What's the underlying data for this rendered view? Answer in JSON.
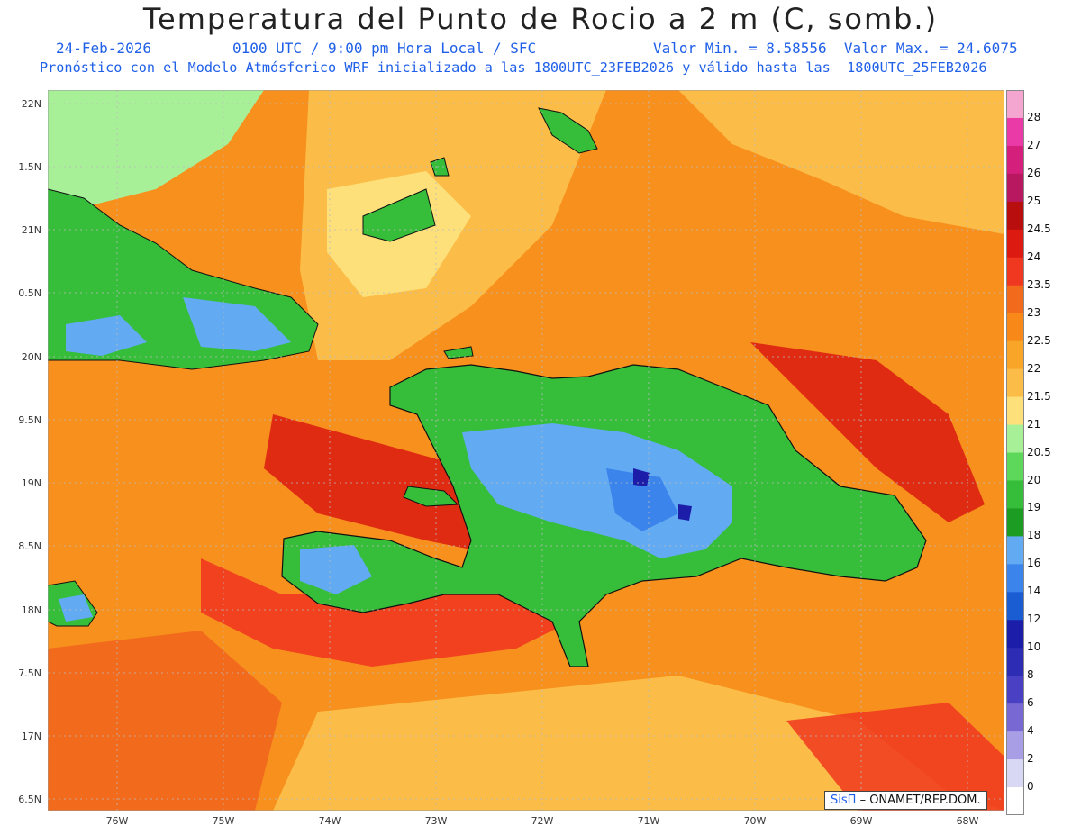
{
  "title": "Temperatura del Punto de Rocio a 2 m (C, somb.)",
  "subtitle_date": "24-Feb-2026",
  "subtitle_time": "0100 UTC / 9:00 pm Hora Local / SFC",
  "subtitle_minmax": "Valor Min. = 8.58556  Valor Max. = 24.6075",
  "subtitle_model": "Pronóstico con el Modelo Atmósferico WRF inicializado a las 1800UTC_23FEB2026 y válido hasta las  1800UTC_25FEB2026",
  "lat_labels": [
    "22N",
    "1.5N",
    "21N",
    "0.5N",
    "20N",
    "9.5N",
    "19N",
    "8.5N",
    "18N",
    "7.5N",
    "17N",
    "6.5N"
  ],
  "lon_labels": [
    "76W",
    "75W",
    "74W",
    "73W",
    "72W",
    "71W",
    "70W",
    "69W",
    "68W"
  ],
  "colorbar": {
    "labels": [
      "28",
      "27",
      "26",
      "25",
      "24.5",
      "24",
      "23.5",
      "23",
      "22.5",
      "22",
      "21.5",
      "21",
      "20.5",
      "20",
      "19",
      "18",
      "16",
      "14",
      "12",
      "10",
      "8",
      "6",
      "4",
      "2",
      "0"
    ],
    "colors": [
      "#f4a6d0",
      "#ea3aa8",
      "#d4207c",
      "#b81860",
      "#b80e0e",
      "#dc1a12",
      "#f03820",
      "#f26a1c",
      "#f88818",
      "#f9a628",
      "#fbbd48",
      "#fde07a",
      "#a8f098",
      "#5ed85a",
      "#36be3a",
      "#1c9c22",
      "#62aaf2",
      "#3a84ec",
      "#1a5cd2",
      "#1c1eaa",
      "#2c2cb4",
      "#4a40c4",
      "#7868d4",
      "#a89ee6",
      "#d8d8f4",
      "#ffffff"
    ]
  },
  "credit_brand": "SisΠ",
  "credit_text": "– ONAMET/REP.DOM.",
  "colors": {
    "ocean": "#f7901d",
    "land_green": "#36be3a",
    "land_blue": "#62aaf2",
    "red": "#dc1a12"
  }
}
